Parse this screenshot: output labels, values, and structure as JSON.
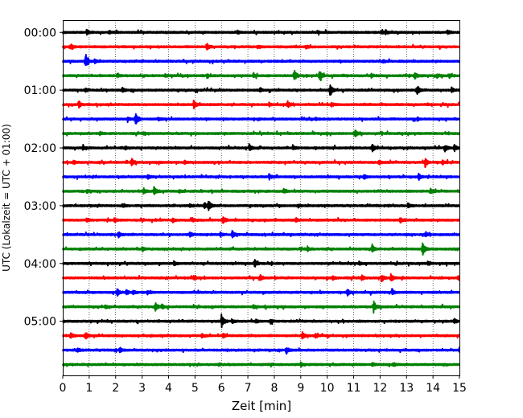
{
  "chart_data": {
    "type": "line",
    "title": "",
    "xlabel": "Zeit  [min]",
    "ylabel": "UTC (Lokalzeit = UTC + 01:00)",
    "xlim": [
      0,
      15
    ],
    "x_ticks": [
      0,
      1,
      2,
      3,
      4,
      5,
      6,
      7,
      8,
      9,
      10,
      11,
      12,
      13,
      14,
      15
    ],
    "y_tick_labels": [
      "00:00",
      "01:00",
      "02:00",
      "03:00",
      "04:00",
      "05:00"
    ],
    "grid": "vertical dotted lines at each minute",
    "row_interval_min": 15,
    "colors": [
      "#000000",
      "#ff0000",
      "#0000ff",
      "#008000"
    ],
    "series": [
      {
        "start": "00:00",
        "color": "#000000",
        "events": [
          [
            0.9,
            0.3
          ],
          [
            1.75,
            0.2
          ],
          [
            6.6,
            0.2
          ],
          [
            12.05,
            0.25
          ],
          [
            12.2,
            0.3
          ],
          [
            14.55,
            0.35
          ]
        ]
      },
      {
        "start": "00:15",
        "color": "#ff0000",
        "events": [
          [
            0.3,
            0.35
          ],
          [
            5.45,
            0.6
          ],
          [
            7.4,
            0.2
          ],
          [
            9.2,
            0.2
          ]
        ]
      },
      {
        "start": "00:30",
        "color": "#0000ff",
        "events": [
          [
            0.85,
            1.0
          ],
          [
            1.2,
            0.3
          ],
          [
            12.1,
            0.2
          ]
        ]
      },
      {
        "start": "00:45",
        "color": "#008000",
        "events": [
          [
            2.05,
            0.25
          ],
          [
            3.85,
            0.2
          ],
          [
            5.45,
            0.25
          ],
          [
            7.2,
            0.25
          ],
          [
            8.75,
            0.85
          ],
          [
            9.7,
            0.8
          ],
          [
            11.65,
            0.3
          ],
          [
            13.3,
            0.5
          ],
          [
            14.15,
            0.3
          ],
          [
            14.6,
            0.3
          ]
        ]
      },
      {
        "start": "01:00",
        "color": "#000000",
        "events": [
          [
            0.85,
            0.25
          ],
          [
            2.25,
            0.3
          ],
          [
            7.45,
            0.4
          ],
          [
            10.1,
            1.0
          ],
          [
            13.4,
            0.8
          ],
          [
            14.7,
            0.3
          ]
        ]
      },
      {
        "start": "01:15",
        "color": "#ff0000",
        "events": [
          [
            0.6,
            0.5
          ],
          [
            4.95,
            0.6
          ],
          [
            7.8,
            0.25
          ],
          [
            8.5,
            0.5
          ],
          [
            10.15,
            0.3
          ]
        ]
      },
      {
        "start": "01:30",
        "color": "#0000ff",
        "events": [
          [
            2.45,
            0.3
          ],
          [
            2.75,
            1.0
          ],
          [
            3.6,
            0.2
          ],
          [
            9.55,
            0.2
          ],
          [
            13.4,
            0.2
          ]
        ]
      },
      {
        "start": "01:45",
        "color": "#008000",
        "events": [
          [
            1.4,
            0.2
          ],
          [
            3.05,
            0.2
          ],
          [
            11.05,
            0.6
          ]
        ]
      },
      {
        "start": "02:00",
        "color": "#000000",
        "events": [
          [
            0.75,
            0.25
          ],
          [
            2.35,
            0.3
          ],
          [
            7.05,
            0.45
          ],
          [
            8.7,
            0.3
          ],
          [
            11.7,
            0.6
          ],
          [
            14.45,
            0.5
          ],
          [
            14.8,
            0.5
          ]
        ]
      },
      {
        "start": "02:15",
        "color": "#ff0000",
        "events": [
          [
            0.4,
            0.25
          ],
          [
            2.6,
            0.5
          ],
          [
            4.6,
            0.2
          ],
          [
            11.95,
            0.3
          ],
          [
            13.7,
            0.65
          ],
          [
            14.35,
            0.3
          ]
        ]
      },
      {
        "start": "02:30",
        "color": "#0000ff",
        "events": [
          [
            3.2,
            0.3
          ],
          [
            7.8,
            0.35
          ],
          [
            11.4,
            0.3
          ],
          [
            13.45,
            0.45
          ]
        ]
      },
      {
        "start": "02:45",
        "color": "#008000",
        "events": [
          [
            0.9,
            0.2
          ],
          [
            3.05,
            0.4
          ],
          [
            3.45,
            0.7
          ],
          [
            4.4,
            0.2
          ],
          [
            8.35,
            0.35
          ],
          [
            13.9,
            0.45
          ]
        ]
      },
      {
        "start": "03:00",
        "color": "#000000",
        "events": [
          [
            2.25,
            0.25
          ],
          [
            4.8,
            0.25
          ],
          [
            5.5,
            0.8
          ],
          [
            5.35,
            0.5
          ],
          [
            8.9,
            0.2
          ],
          [
            13.05,
            0.3
          ]
        ]
      },
      {
        "start": "03:15",
        "color": "#ff0000",
        "events": [
          [
            0.9,
            0.3
          ],
          [
            1.95,
            0.3
          ],
          [
            4.15,
            0.3
          ],
          [
            4.9,
            0.3
          ],
          [
            6.05,
            0.65
          ],
          [
            8.8,
            0.3
          ],
          [
            12.75,
            0.4
          ]
        ]
      },
      {
        "start": "03:30",
        "color": "#0000ff",
        "events": [
          [
            2.1,
            0.4
          ],
          [
            4.8,
            0.3
          ],
          [
            5.95,
            0.3
          ],
          [
            6.4,
            0.6
          ],
          [
            13.7,
            0.3
          ]
        ]
      },
      {
        "start": "03:45",
        "color": "#008000",
        "events": [
          [
            3.0,
            0.25
          ],
          [
            9.25,
            0.3
          ],
          [
            11.7,
            0.6
          ],
          [
            13.6,
            0.95
          ]
        ]
      },
      {
        "start": "04:00",
        "color": "#000000",
        "events": [
          [
            4.2,
            0.3
          ],
          [
            7.25,
            0.55
          ],
          [
            11.2,
            0.3
          ],
          [
            13.8,
            0.3
          ]
        ]
      },
      {
        "start": "04:15",
        "color": "#ff0000",
        "events": [
          [
            4.95,
            0.3
          ],
          [
            7.45,
            0.5
          ],
          [
            10.2,
            0.3
          ],
          [
            11.3,
            0.4
          ],
          [
            12.05,
            0.55
          ],
          [
            12.4,
            0.6
          ],
          [
            14.95,
            0.35
          ]
        ]
      },
      {
        "start": "04:30",
        "color": "#0000ff",
        "events": [
          [
            2.05,
            0.5
          ],
          [
            2.4,
            0.4
          ],
          [
            2.65,
            0.3
          ],
          [
            3.2,
            0.3
          ],
          [
            10.75,
            0.5
          ],
          [
            12.45,
            0.3
          ]
        ]
      },
      {
        "start": "04:45",
        "color": "#008000",
        "events": [
          [
            1.6,
            0.25
          ],
          [
            3.5,
            0.55
          ],
          [
            3.75,
            0.3
          ],
          [
            7.2,
            0.2
          ],
          [
            11.75,
            0.9
          ]
        ]
      },
      {
        "start": "05:00",
        "color": "#000000",
        "events": [
          [
            6.0,
            0.9
          ],
          [
            6.4,
            0.3
          ],
          [
            7.3,
            0.3
          ],
          [
            7.85,
            0.3
          ],
          [
            14.8,
            0.45
          ]
        ]
      },
      {
        "start": "05:15",
        "color": "#ff0000",
        "events": [
          [
            0.3,
            0.35
          ],
          [
            0.85,
            0.6
          ],
          [
            5.25,
            0.3
          ],
          [
            6.05,
            0.3
          ],
          [
            9.05,
            0.5
          ],
          [
            9.55,
            0.35
          ]
        ]
      },
      {
        "start": "05:30",
        "color": "#0000ff",
        "events": [
          [
            0.55,
            0.35
          ],
          [
            2.15,
            0.35
          ],
          [
            8.45,
            0.55
          ],
          [
            15.0,
            0.4
          ]
        ]
      },
      {
        "start": "05:45",
        "color": "#008000",
        "events": [
          [
            5.9,
            0.2
          ],
          [
            9.0,
            0.25
          ],
          [
            11.7,
            0.3
          ],
          [
            12.5,
            0.2
          ]
        ]
      }
    ]
  }
}
